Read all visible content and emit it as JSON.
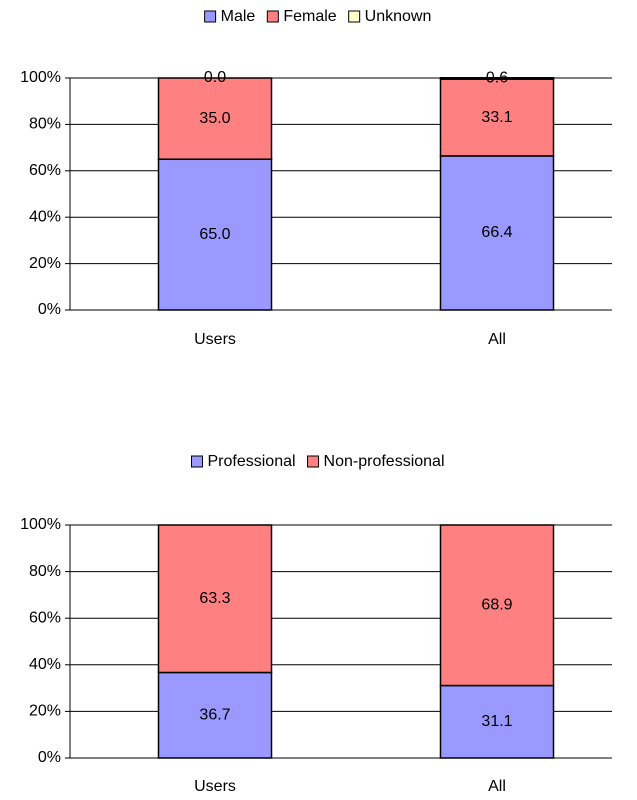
{
  "chart_data": [
    {
      "type": "stacked_bar",
      "categories": [
        "Users",
        "All"
      ],
      "series": [
        {
          "name": "Male",
          "color": "#9999ff",
          "values": [
            65.0,
            66.4
          ],
          "value_labels": [
            "65.0",
            "66.4"
          ]
        },
        {
          "name": "Female",
          "color": "#ff8080",
          "values": [
            35.0,
            33.1
          ],
          "value_labels": [
            "35.0",
            "33.1"
          ]
        },
        {
          "name": "Unknown",
          "color": "#ffffcc",
          "values": [
            0.0,
            0.6
          ],
          "value_labels": [
            "0.0",
            "0.6"
          ]
        }
      ],
      "ylim": [
        0,
        100
      ],
      "yticks": [
        {
          "value": 0,
          "label": "0%"
        },
        {
          "value": 20,
          "label": "20%"
        },
        {
          "value": 40,
          "label": "40%"
        },
        {
          "value": 60,
          "label": "60%"
        },
        {
          "value": 80,
          "label": "80%"
        },
        {
          "value": 100,
          "label": "100%"
        }
      ],
      "grid": true,
      "legend": "top"
    },
    {
      "type": "stacked_bar",
      "categories": [
        "Users",
        "All"
      ],
      "series": [
        {
          "name": "Professional",
          "color": "#9999ff",
          "values": [
            36.7,
            31.1
          ]
        },
        {
          "name": "Non-professional",
          "color": "#ff8080",
          "values": [
            63.3,
            68.9
          ]
        }
      ],
      "ylim": [
        0,
        100
      ],
      "yticks": [
        {
          "value": 0,
          "label": "0%"
        },
        {
          "value": 20,
          "label": "20%"
        },
        {
          "value": 40,
          "label": "40%"
        },
        {
          "value": 60,
          "label": "60%"
        },
        {
          "value": 80,
          "label": "80%"
        },
        {
          "value": 100,
          "label": "100%"
        }
      ],
      "grid": true,
      "legend": "top"
    }
  ]
}
